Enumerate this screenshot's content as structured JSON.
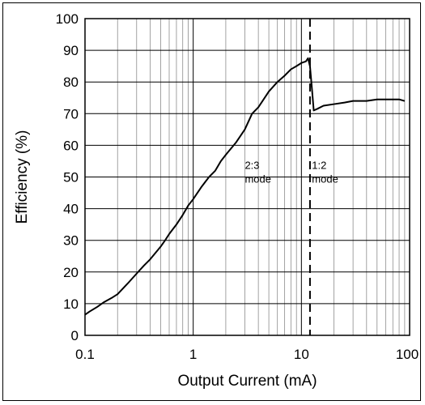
{
  "chart_data": {
    "type": "line",
    "xscale": "log",
    "xlim": [
      0.1,
      100
    ],
    "ylim": [
      0,
      100
    ],
    "xlabel": "Output Current (mA)",
    "ylabel": "Efficiency (%)",
    "x_ticks": [
      0.1,
      1,
      10,
      100
    ],
    "x_tick_labels": [
      "0.1",
      "1",
      "10",
      "100"
    ],
    "y_ticks": [
      0,
      10,
      20,
      30,
      40,
      50,
      60,
      70,
      80,
      90,
      100
    ],
    "y_tick_labels": [
      "0",
      "10",
      "20",
      "30",
      "40",
      "50",
      "60",
      "70",
      "80",
      "90",
      "100"
    ],
    "grid": true,
    "line_color": "#000000",
    "series": [
      {
        "x": [
          0.1,
          0.11,
          0.13,
          0.15,
          0.18,
          0.2,
          0.25,
          0.3,
          0.35,
          0.4,
          0.5,
          0.55,
          0.6,
          0.7,
          0.8,
          0.9,
          1.0,
          1.2,
          1.4,
          1.6,
          1.8,
          2.0,
          2.5,
          3.0,
          3.5,
          4.0,
          5.0,
          6.0,
          7.0,
          8.0,
          9.0,
          10.0,
          11.0,
          11.5,
          12.0,
          12.5,
          13.0,
          14.0,
          16.0,
          20.0,
          25.0,
          30.0,
          40.0,
          50.0,
          60.0,
          70.0,
          80.0,
          90.0
        ],
        "y": [
          6.5,
          7.5,
          9,
          10.5,
          12,
          13,
          16.5,
          19.5,
          22,
          24,
          28,
          30,
          32,
          35,
          38,
          41,
          43,
          47,
          50,
          52,
          55,
          57,
          61,
          65,
          70,
          72,
          77,
          80,
          82,
          84,
          85,
          86,
          86.5,
          87.5,
          85,
          78,
          71,
          71.5,
          72.5,
          73,
          73.5,
          74,
          74,
          74.5,
          74.5,
          74.5,
          74.5,
          74
        ]
      }
    ],
    "annotations": [
      {
        "lines": [
          "2:3",
          "mode"
        ],
        "x": 3.0,
        "y": 50
      },
      {
        "lines": [
          "1:2",
          "mode"
        ],
        "x": 12.5,
        "y": 50
      }
    ],
    "vline": {
      "x": 12.0,
      "style": "dashed"
    }
  }
}
